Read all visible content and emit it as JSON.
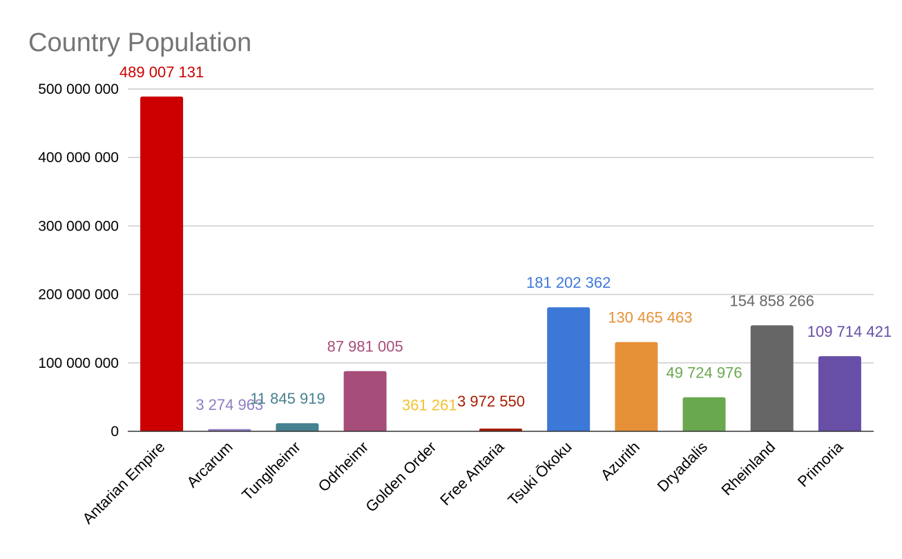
{
  "chart_data": {
    "type": "bar",
    "title": "Country Population",
    "xlabel": "",
    "ylabel": "",
    "ylim": [
      0,
      500000000
    ],
    "yticks": [
      0,
      100000000,
      200000000,
      300000000,
      400000000,
      500000000
    ],
    "ytick_labels": [
      "0",
      "100 000 000",
      "200 000 000",
      "300 000 000",
      "400 000 000",
      "500 000 000"
    ],
    "grid": true,
    "legend": "none",
    "categories": [
      "Antarian Empire",
      "Arcarum",
      "Tunglheimr",
      "Odrheimr",
      "Golden Order",
      "Free Antaria",
      "Tsuki Ōkoku",
      "Azurith",
      "Dryadalis",
      "Rheinland",
      "Primoria"
    ],
    "values": [
      489007131,
      3274963,
      11845919,
      87981005,
      361261,
      3972550,
      181202362,
      130465463,
      49724976,
      154858266,
      109714421
    ],
    "data_labels": [
      "489 007 131",
      "3 274 963",
      "11 845 919",
      "87 981 005",
      "361 261",
      "3 972 550",
      "181 202 362",
      "130 465 463",
      "49 724 976",
      "154 858 266",
      "109 714 421"
    ],
    "colors": [
      "#cc0000",
      "#8e7cc3",
      "#45818e",
      "#a64d79",
      "#f1c232",
      "#a61c00",
      "#3c78d8",
      "#e69138",
      "#6aa84f",
      "#666666",
      "#674ea7"
    ]
  }
}
